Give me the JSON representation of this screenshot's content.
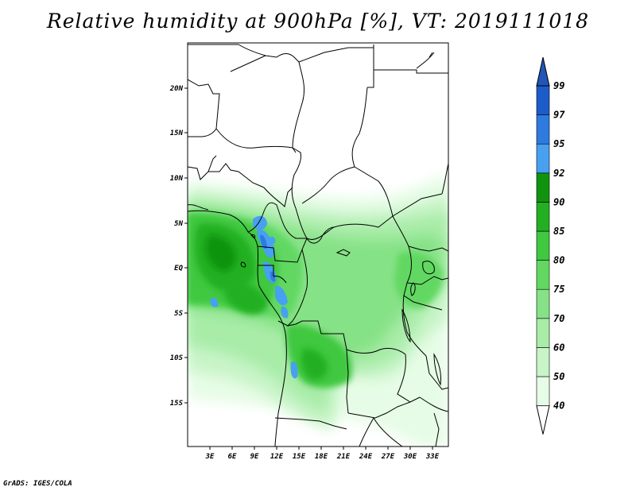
{
  "title": "Relative humidity at 900hPa [%], VT: 2019111018",
  "credit": "GrADS: IGES/COLA",
  "map": {
    "lat_labels": [
      "20N",
      "15N",
      "10N",
      "5N",
      "EQ",
      "5S",
      "10S",
      "15S"
    ],
    "lon_labels": [
      "3E",
      "6E",
      "9E",
      "12E",
      "15E",
      "18E",
      "21E",
      "24E",
      "27E",
      "30E",
      "33E"
    ]
  },
  "colorbar": {
    "levels": [
      "40",
      "50",
      "60",
      "70",
      "75",
      "80",
      "85",
      "90",
      "92",
      "95",
      "97",
      "99"
    ],
    "colors": [
      "#ffffff",
      "#e6fce6",
      "#c8f4c8",
      "#a8eca8",
      "#86e286",
      "#62d862",
      "#40c840",
      "#22b022",
      "#109410",
      "#48a0f0",
      "#2e7be0",
      "#1c5cc8",
      "#2155b8"
    ]
  }
}
